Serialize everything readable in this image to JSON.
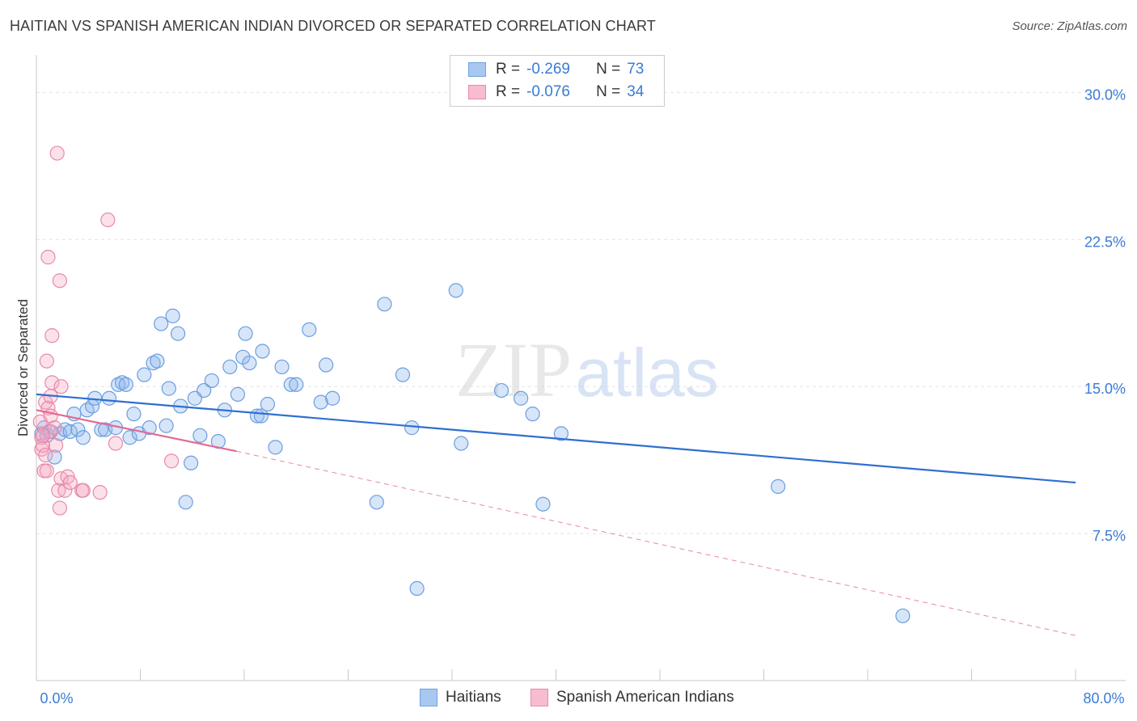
{
  "title": "HAITIAN VS SPANISH AMERICAN INDIAN DIVORCED OR SEPARATED CORRELATION CHART",
  "source": "Source: ZipAtlas.com",
  "watermark": {
    "part1": "ZIP",
    "part2": "atlas"
  },
  "legend_top": [
    {
      "r_label": "R =",
      "r_value": "-0.269",
      "n_label": "N =",
      "n_value": "73",
      "color": "#a9c8f0",
      "border": "#6fa0e0"
    },
    {
      "r_label": "R =",
      "r_value": "-0.076",
      "n_label": "N =",
      "n_value": "34",
      "color": "#f7bccf",
      "border": "#e88aa8"
    }
  ],
  "legend_bottom": [
    {
      "label": "Haitians",
      "color": "#a9c8f0",
      "border": "#6fa0e0"
    },
    {
      "label": "Spanish American Indians",
      "color": "#f7bccf",
      "border": "#e88aa8"
    }
  ],
  "colors": {
    "blue_line": "#2f6fd0",
    "pink_line": "#e46a93",
    "blue_fill": "rgba(140,180,235,0.35)",
    "blue_stroke": "#6a9ee0",
    "pink_fill": "rgba(245,170,195,0.35)",
    "pink_stroke": "#e88aa8",
    "tick_label": "#3a7bd5",
    "grid": "#e4e4e4"
  },
  "chart_data": {
    "type": "scatter",
    "title": "HAITIAN VS SPANISH AMERICAN INDIAN DIVORCED OR SEPARATED CORRELATION CHART",
    "xlabel": "",
    "ylabel": "Divorced or Separated",
    "xlim": [
      0,
      80
    ],
    "ylim": [
      0,
      31.5
    ],
    "x_tick_labels": [
      "0.0%",
      "80.0%"
    ],
    "y_ticks": [
      7.5,
      15.0,
      22.5,
      30.0
    ],
    "y_tick_labels": [
      "7.5%",
      "15.0%",
      "22.5%",
      "30.0%"
    ],
    "grid": true,
    "legend_position": "top-center",
    "series": [
      {
        "name": "Haitians",
        "trend": {
          "x": [
            0,
            80
          ],
          "y": [
            14.6,
            10.1
          ],
          "style": "solid"
        },
        "points": [
          [
            0.4,
            12.6
          ],
          [
            0.6,
            12.9
          ],
          [
            0.8,
            12.5
          ],
          [
            1.1,
            12.7
          ],
          [
            1.4,
            11.4
          ],
          [
            1.8,
            12.6
          ],
          [
            2.2,
            12.8
          ],
          [
            2.6,
            12.7
          ],
          [
            2.9,
            13.6
          ],
          [
            3.2,
            12.8
          ],
          [
            3.6,
            12.4
          ],
          [
            3.9,
            13.8
          ],
          [
            4.3,
            14.0
          ],
          [
            4.5,
            14.4
          ],
          [
            5.0,
            12.8
          ],
          [
            5.3,
            12.8
          ],
          [
            5.6,
            14.4
          ],
          [
            6.1,
            12.9
          ],
          [
            6.3,
            15.1
          ],
          [
            6.6,
            15.2
          ],
          [
            6.9,
            15.1
          ],
          [
            7.2,
            12.4
          ],
          [
            7.5,
            13.6
          ],
          [
            7.9,
            12.6
          ],
          [
            8.3,
            15.6
          ],
          [
            8.7,
            12.9
          ],
          [
            9.0,
            16.2
          ],
          [
            9.3,
            16.3
          ],
          [
            9.6,
            18.2
          ],
          [
            10.0,
            13.0
          ],
          [
            10.2,
            14.9
          ],
          [
            10.5,
            18.6
          ],
          [
            10.9,
            17.7
          ],
          [
            11.1,
            14.0
          ],
          [
            11.5,
            9.1
          ],
          [
            11.9,
            11.1
          ],
          [
            12.2,
            14.4
          ],
          [
            12.6,
            12.5
          ],
          [
            12.9,
            14.8
          ],
          [
            13.5,
            15.3
          ],
          [
            14.0,
            12.2
          ],
          [
            14.5,
            13.8
          ],
          [
            14.9,
            16.0
          ],
          [
            15.5,
            14.6
          ],
          [
            15.9,
            16.5
          ],
          [
            16.1,
            17.7
          ],
          [
            16.4,
            16.2
          ],
          [
            17.0,
            13.5
          ],
          [
            17.4,
            16.8
          ],
          [
            17.8,
            14.1
          ],
          [
            17.3,
            13.5
          ],
          [
            18.4,
            11.9
          ],
          [
            18.9,
            16.0
          ],
          [
            19.6,
            15.1
          ],
          [
            20.0,
            15.1
          ],
          [
            21.0,
            17.9
          ],
          [
            21.9,
            14.2
          ],
          [
            22.3,
            16.1
          ],
          [
            22.8,
            14.4
          ],
          [
            26.2,
            9.1
          ],
          [
            26.8,
            19.2
          ],
          [
            28.2,
            15.6
          ],
          [
            28.9,
            12.9
          ],
          [
            29.3,
            4.7
          ],
          [
            32.3,
            19.9
          ],
          [
            32.7,
            12.1
          ],
          [
            35.8,
            14.8
          ],
          [
            37.3,
            14.4
          ],
          [
            38.2,
            13.6
          ],
          [
            39.0,
            9.0
          ],
          [
            40.4,
            12.6
          ],
          [
            57.1,
            9.9
          ],
          [
            66.7,
            3.3
          ]
        ]
      },
      {
        "name": "Spanish American Indians",
        "trend": {
          "x": [
            0,
            15.4
          ],
          "y": [
            13.8,
            11.7
          ],
          "style": "solid",
          "extension": {
            "x": [
              15.4,
              80
            ],
            "y": [
              11.7,
              2.3
            ],
            "style": "dashed"
          }
        },
        "points": [
          [
            0.3,
            13.2
          ],
          [
            0.4,
            12.4
          ],
          [
            0.4,
            11.8
          ],
          [
            0.5,
            12.0
          ],
          [
            0.6,
            10.7
          ],
          [
            0.7,
            11.5
          ],
          [
            0.8,
            10.7
          ],
          [
            0.7,
            14.2
          ],
          [
            0.9,
            13.9
          ],
          [
            0.8,
            16.3
          ],
          [
            0.9,
            21.6
          ],
          [
            1.0,
            12.7
          ],
          [
            1.1,
            13.5
          ],
          [
            1.1,
            14.5
          ],
          [
            1.2,
            15.2
          ],
          [
            1.2,
            17.6
          ],
          [
            1.4,
            12.9
          ],
          [
            1.5,
            12.0
          ],
          [
            1.6,
            26.9
          ],
          [
            1.7,
            9.7
          ],
          [
            1.8,
            20.4
          ],
          [
            1.8,
            8.8
          ],
          [
            1.9,
            10.3
          ],
          [
            1.9,
            15.0
          ],
          [
            2.2,
            9.7
          ],
          [
            2.4,
            10.4
          ],
          [
            2.6,
            10.1
          ],
          [
            3.5,
            9.7
          ],
          [
            3.6,
            9.7
          ],
          [
            4.9,
            9.6
          ],
          [
            5.5,
            23.5
          ],
          [
            6.1,
            12.1
          ],
          [
            10.4,
            11.2
          ],
          [
            0.5,
            12.5
          ]
        ]
      }
    ]
  }
}
